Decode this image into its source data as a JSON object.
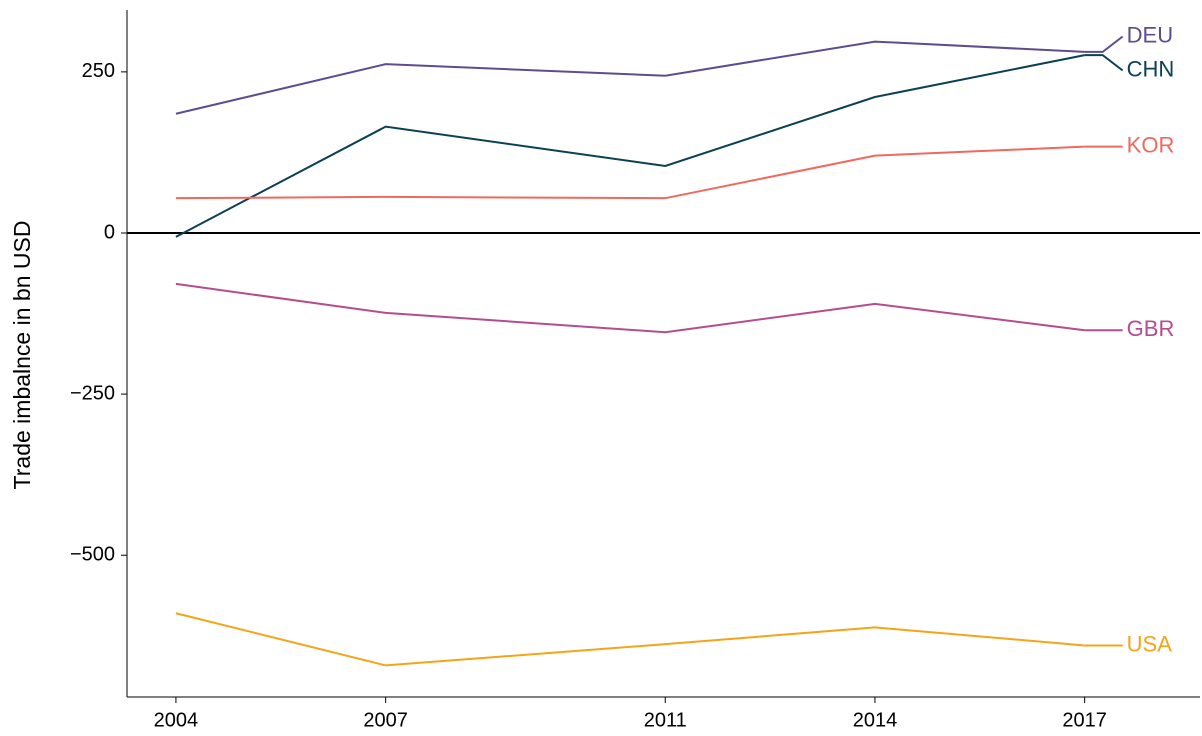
{
  "chart_data": {
    "type": "line",
    "y_label": "Trade imbalnce in bn USD",
    "x": [
      2004,
      2007,
      2011,
      2014,
      2017
    ],
    "series": [
      {
        "name": "DEU",
        "color": "#5e4c8f",
        "values": [
          185,
          262,
          244,
          297,
          281
        ]
      },
      {
        "name": "CHN",
        "color": "#0b4155",
        "values": [
          -6,
          165,
          104,
          211,
          276
        ]
      },
      {
        "name": "KOR",
        "color": "#f0695f",
        "values": [
          54,
          56,
          54,
          120,
          134
        ]
      },
      {
        "name": "GBR",
        "color": "#b44d8f",
        "values": [
          -79,
          -124,
          -154,
          -110,
          -151
        ]
      },
      {
        "name": "USA",
        "color": "#f4a418",
        "values": [
          -590,
          -671,
          -638,
          -612,
          -640
        ]
      }
    ],
    "xlim": [
      2003.3,
      2018.65
    ],
    "ylim": [
      -720,
      346
    ],
    "xticks": [
      2004,
      2007,
      2011,
      2014,
      2017
    ],
    "yticks": [
      {
        "value": -500,
        "label": "−500"
      },
      {
        "value": -250,
        "label": "−250"
      },
      0,
      250
    ],
    "zero_line": true
  }
}
